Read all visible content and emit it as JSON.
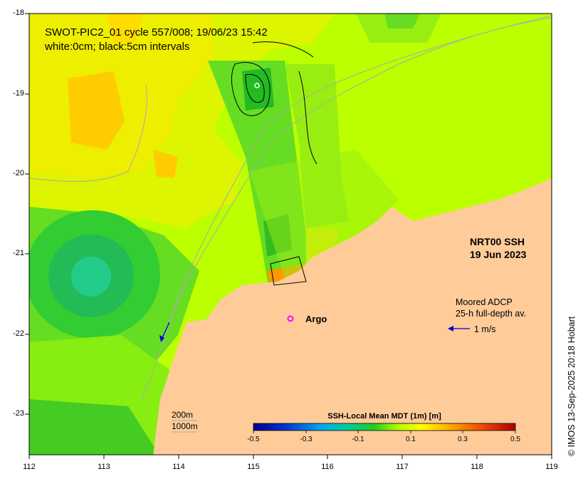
{
  "title": {
    "line1": "SWOT-PIC2_01 cycle 557/008; 19/06/23 15:42",
    "line2": "white:0cm; black:5cm intervals"
  },
  "product": {
    "line1": "NRT00 SSH",
    "line2": "19 Jun 2023"
  },
  "adcp_legend": {
    "line1": "Moored ADCP",
    "line2": "25-h full-depth av.",
    "arrow_label": "1 m/s"
  },
  "argo_label": "Argo",
  "isobaths": {
    "line1": "200m",
    "line2": "1000m"
  },
  "colorbar": {
    "title": "SSH-Local Mean MDT (1m) [m]",
    "ticks": [
      "-0.5",
      "-0.3",
      "-0.1",
      "0.1",
      "0.3",
      "0.5"
    ],
    "range": [
      -0.5,
      0.5
    ]
  },
  "axes": {
    "lon_ticks": [
      "112",
      "113",
      "114",
      "115",
      "116",
      "117",
      "118",
      "119"
    ],
    "lat_ticks": [
      "-18",
      "-19",
      "-20",
      "-21",
      "-22",
      "-23"
    ],
    "lon_range": [
      112,
      119
    ],
    "lat_range": [
      -23.5,
      -18
    ]
  },
  "credit": "© IMOS 13-Sep-2025 20:18 Hobart",
  "colors": {
    "land": "#ffcc99",
    "ssh_base": "#bbff00",
    "anticyclone_center": "#22cc88",
    "argo_marker": "#ff00ff",
    "current_arrow": "#0000cc"
  },
  "icons": [
    "argo-float-icon",
    "current-arrow-icon"
  ]
}
